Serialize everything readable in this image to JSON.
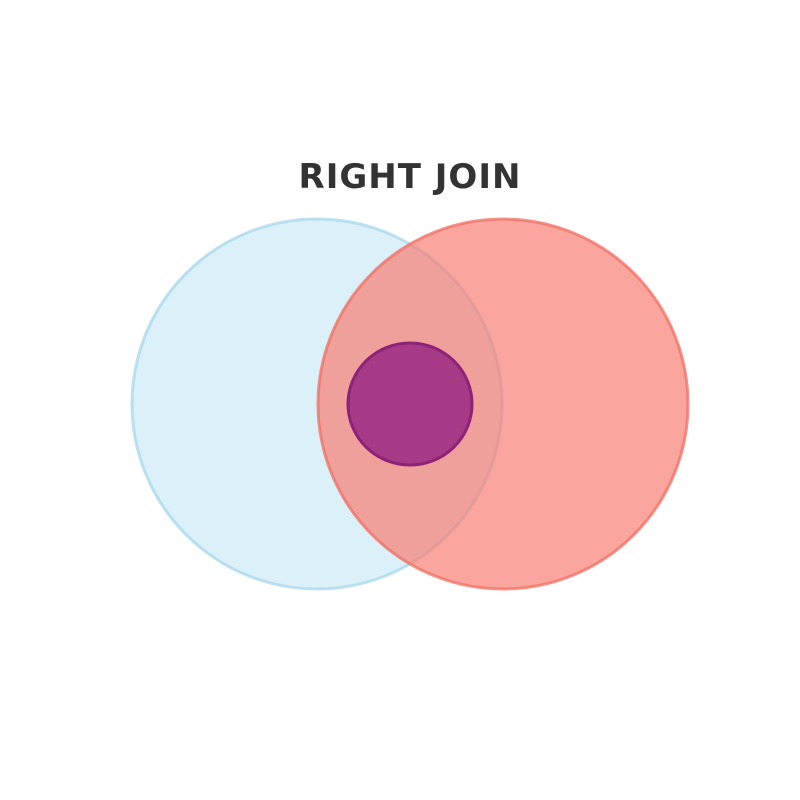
{
  "title": "RIGHT JOIN",
  "colors": {
    "title": "#333333",
    "left_circle_fill": "#bde3f2",
    "left_circle_stroke": "#a3d6ec",
    "right_circle_fill": "#f87b6f",
    "right_circle_stroke": "#f26e62",
    "inner_circle_fill": "#a23585",
    "inner_circle_stroke": "#8e2178"
  }
}
